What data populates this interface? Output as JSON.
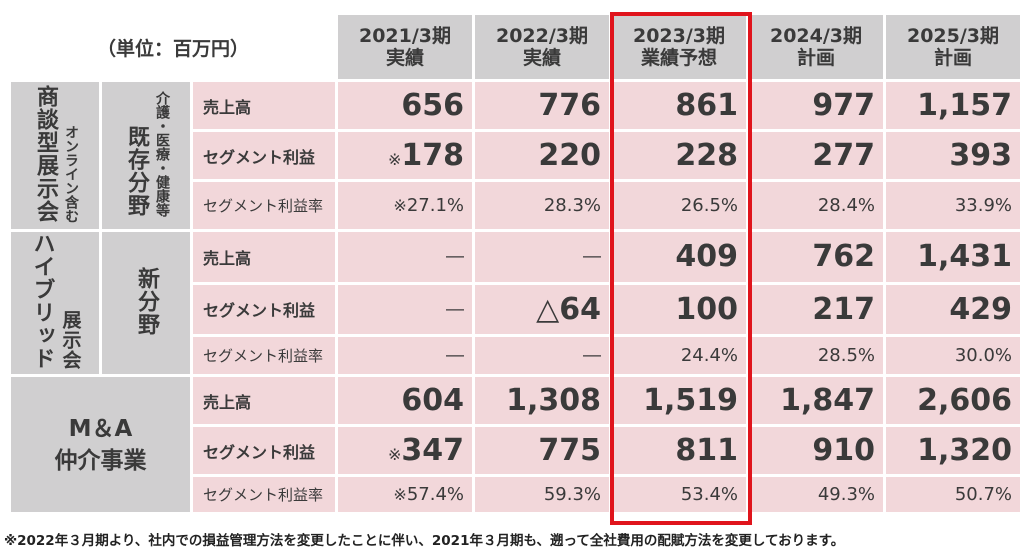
{
  "unit": "（単位：百万円）",
  "columns": [
    {
      "year": "2021/3期",
      "kind": "実績"
    },
    {
      "year": "2022/3期",
      "kind": "実績"
    },
    {
      "year": "2023/3期",
      "kind": "業績予想"
    },
    {
      "year": "2024/3期",
      "kind": "計画"
    },
    {
      "year": "2025/3期",
      "kind": "計画"
    }
  ],
  "groups": [
    {
      "title": "商談型展示会",
      "note": "オンライン含む",
      "sub": "既存分野",
      "sub_note": "介護・医療・健康等",
      "rows": [
        {
          "label": "売上高",
          "values": [
            "656",
            "776",
            "861",
            "977",
            "1,157"
          ]
        },
        {
          "label": "セグメント利益",
          "mark": "※",
          "values": [
            "178",
            "220",
            "228",
            "277",
            "393"
          ]
        },
        {
          "label": "セグメント利益率",
          "mark": "※",
          "values": [
            "27.1%",
            "28.3%",
            "26.5%",
            "28.4%",
            "33.9%"
          ]
        }
      ]
    },
    {
      "title": "ハイブリッド",
      "note": "展示会",
      "sub": "新分野",
      "rows": [
        {
          "label": "売上高",
          "values": [
            "―",
            "―",
            "409",
            "762",
            "1,431"
          ]
        },
        {
          "label": "セグメント利益",
          "values": [
            "―",
            "△64",
            "100",
            "217",
            "429"
          ]
        },
        {
          "label": "セグメント利益率",
          "values": [
            "―",
            "―",
            "24.4%",
            "28.5%",
            "30.0%"
          ]
        }
      ]
    },
    {
      "title": "M＆A",
      "title2": "仲介事業",
      "rows": [
        {
          "label": "売上高",
          "values": [
            "604",
            "1,308",
            "1,519",
            "1,847",
            "2,606"
          ]
        },
        {
          "label": "セグメント利益",
          "mark": "※",
          "values": [
            "347",
            "775",
            "811",
            "910",
            "1,320"
          ]
        },
        {
          "label": "セグメント利益率",
          "mark": "※",
          "values": [
            "57.4%",
            "59.3%",
            "53.4%",
            "49.3%",
            "50.7%"
          ]
        }
      ]
    }
  ],
  "highlight_color": "#e0141c",
  "footnote": "※2022年３月期より、社内での損益管理方法を変更したことに伴い、2021年３月期も、遡って全社費用の配賦方法を変更しております。"
}
